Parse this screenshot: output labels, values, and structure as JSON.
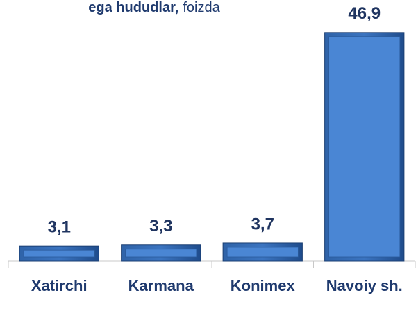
{
  "chart_data": {
    "type": "bar",
    "title": [
      "ega hududlar,",
      "foizda"
    ],
    "categories": [
      "Xatirchi",
      "Karmana",
      "Konimex",
      "Navoiy sh."
    ],
    "values": [
      3.1,
      3.3,
      3.7,
      46.9
    ],
    "value_labels": [
      "3,1",
      "3,3",
      "3,7",
      "46,9"
    ],
    "color": "#4a86d4",
    "ylim": [
      0,
      50
    ]
  }
}
